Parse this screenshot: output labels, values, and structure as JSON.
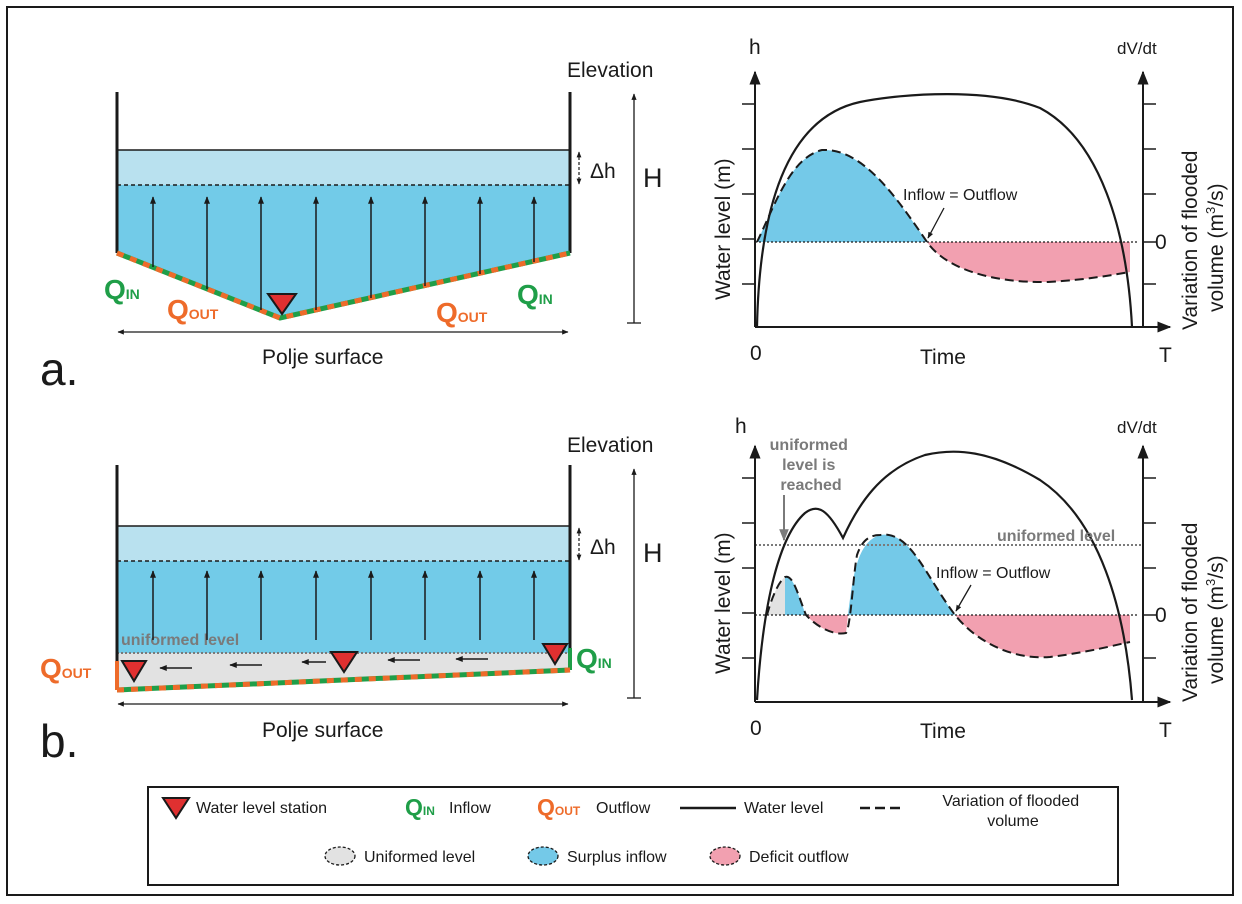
{
  "colors": {
    "water_light": "#b9e1ef",
    "water": "#72cbe8",
    "surplus": "#74c9e8",
    "deficit": "#f2a0b0",
    "uniform": "#e2e2e2",
    "inflow_green": "#1f9e48",
    "outflow_orange": "#ee6b2a",
    "station_red": "#e03030"
  },
  "panel_a": {
    "letter": "a.",
    "elevation": "Elevation",
    "H": "H",
    "dh": "Δh",
    "surface": "Polje surface",
    "q_in_left": {
      "main": "Q",
      "sub": "IN"
    },
    "q_in_right": {
      "main": "Q",
      "sub": "IN"
    },
    "q_out_left": {
      "main": "Q",
      "sub": "OUT"
    },
    "q_out_right": {
      "main": "Q",
      "sub": "OUT"
    }
  },
  "panel_b": {
    "letter": "b.",
    "elevation": "Elevation",
    "H": "H",
    "dh": "Δh",
    "surface": "Polje surface",
    "uniformed_level": "uniformed level",
    "q_in": {
      "main": "Q",
      "sub": "IN"
    },
    "q_out": {
      "main": "Q",
      "sub": "OUT"
    }
  },
  "graph_a": {
    "h": "h",
    "dvdt": "dV/dt",
    "ylabel_left": "Water level (m)",
    "ylabel_right_1": "Variation of flooded",
    "ylabel_right_2": "volume (m",
    "ylabel_right_sup": "3",
    "ylabel_right_3": "/s)",
    "x_zero": "0",
    "x_label": "Time",
    "x_end": "T",
    "right_zero": "0",
    "annotation": "Inflow = Outflow"
  },
  "graph_b": {
    "h": "h",
    "dvdt": "dV/dt",
    "ylabel_left": "Water level (m)",
    "ylabel_right_1": "Variation of flooded",
    "ylabel_right_2": "volume (m",
    "ylabel_right_sup": "3",
    "ylabel_right_3": "/s)",
    "x_zero": "0",
    "x_label": "Time",
    "x_end": "T",
    "right_zero": "0",
    "annotation": "Inflow = Outflow",
    "reached_1": "uniformed",
    "reached_2": "level is",
    "reached_3": "reached",
    "uniformed_level": "uniformed level"
  },
  "legend": {
    "station": "Water level station",
    "inflow_q": "Q",
    "inflow_sub": "IN",
    "inflow": "Inflow",
    "outflow_q": "Q",
    "outflow_sub": "OUT",
    "outflow": "Outflow",
    "water_level": "Water level",
    "variation_1": "Variation of flooded",
    "variation_2": "volume",
    "uniformed": "Uniformed level",
    "surplus": "Surplus inflow",
    "deficit": "Deficit outflow"
  }
}
